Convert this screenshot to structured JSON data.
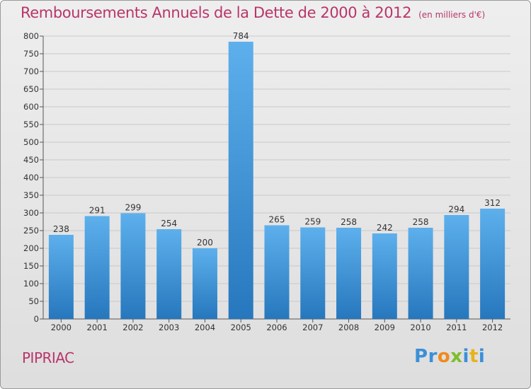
{
  "chart_data": {
    "type": "bar",
    "title": "Remboursements Annuels de la Dette de 2000 à 2012",
    "subtitle": "(en milliers d'€)",
    "categories": [
      "2000",
      "2001",
      "2002",
      "2003",
      "2004",
      "2005",
      "2006",
      "2007",
      "2008",
      "2009",
      "2010",
      "2011",
      "2012"
    ],
    "values": [
      238,
      291,
      299,
      254,
      200,
      784,
      265,
      259,
      258,
      242,
      258,
      294,
      312
    ],
    "ylim": [
      0,
      800
    ],
    "yticks": [
      0,
      50,
      100,
      150,
      200,
      250,
      300,
      350,
      400,
      450,
      500,
      550,
      600,
      650,
      700,
      750,
      800
    ],
    "grid": true,
    "bar_color": "#3f8fd6"
  },
  "footer": {
    "commune": "PIPRIAC",
    "logo_letters": [
      {
        "ch": "P",
        "color": "#3b8fd9"
      },
      {
        "ch": "r",
        "color": "#3b8fd9"
      },
      {
        "ch": "o",
        "color": "#f08a1c"
      },
      {
        "ch": "x",
        "color": "#7cbf2b"
      },
      {
        "ch": "i",
        "color": "#3b8fd9"
      },
      {
        "ch": "t",
        "color": "#e8b21a"
      },
      {
        "ch": "i",
        "color": "#3b8fd9"
      }
    ]
  }
}
